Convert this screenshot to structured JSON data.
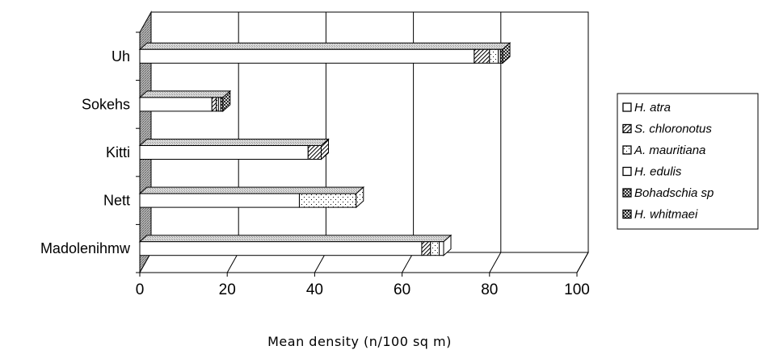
{
  "chart_data": {
    "type": "bar",
    "orientation": "horizontal",
    "stacked": true,
    "categories": [
      "Uh",
      "Sokehs",
      "Kitti",
      "Nett",
      "Madolenihmw"
    ],
    "series": [
      {
        "name": "H. atra",
        "values": [
          76.5,
          16.5,
          38.5,
          36.5,
          64.5
        ]
      },
      {
        "name": "S. chloronotus",
        "values": [
          3.5,
          1.0,
          3.0,
          0.0,
          2.0
        ]
      },
      {
        "name": "A. mauritiana",
        "values": [
          2.0,
          0.5,
          0.0,
          13.0,
          2.0
        ]
      },
      {
        "name": "H. edulis",
        "values": [
          0.5,
          0.5,
          0.0,
          0.0,
          1.0
        ]
      },
      {
        "name": "Bohadschia sp",
        "values": [
          0.5,
          0.5,
          0.0,
          0.0,
          0.0
        ]
      },
      {
        "name": "H. whitmaei",
        "values": [
          0.0,
          0.0,
          0.0,
          0.0,
          0.0
        ]
      }
    ],
    "series_colors": [
      "#ffffff",
      "#ffffff",
      "#ffffff",
      "#ffffff",
      "#ffffff",
      "#ffffff"
    ],
    "series_patterns": [
      "solid",
      "diagonal-hatch",
      "dots",
      "solid",
      "cross-hatch",
      "cross-hatch"
    ],
    "xlabel": "Mean density (n/100 sq m)",
    "ylabel": "",
    "xlim": [
      0,
      100
    ],
    "xticks": [
      "0",
      "20",
      "40",
      "60",
      "80",
      "100"
    ],
    "grid": "vertical major gridlines",
    "legend_position": "right",
    "style": "3d"
  }
}
